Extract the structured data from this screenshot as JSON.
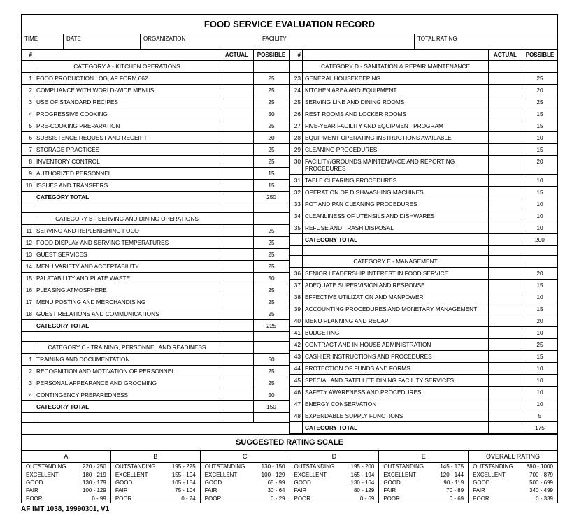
{
  "title": "FOOD SERVICE EVALUATION RECORD",
  "header": {
    "time": "TIME",
    "date": "DATE",
    "org": "ORGANIZATION",
    "facility": "FACILITY",
    "total_rating": "TOTAL RATING"
  },
  "cols": {
    "num": "#",
    "actual": "ACTUAL",
    "possible": "POSSIBLE"
  },
  "catA": {
    "title": "CATEGORY A - KITCHEN OPERATIONS",
    "rows": [
      {
        "n": "1",
        "d": "FOOD PRODUCTION LOG,  AF FORM 662",
        "p": "25"
      },
      {
        "n": "2",
        "d": "COMPLIANCE WITH WORLD-WIDE MENUS",
        "p": "25"
      },
      {
        "n": "3",
        "d": "USE OF STANDARD RECIPES",
        "p": "25"
      },
      {
        "n": "4",
        "d": "PROGRESSIVE COOKING",
        "p": "50"
      },
      {
        "n": "5",
        "d": "PRE-COOKING PREPARATION",
        "p": "25"
      },
      {
        "n": "6",
        "d": "SUBSISTENCE REQUEST AND RECEIPT",
        "p": "20"
      },
      {
        "n": "7",
        "d": "STORAGE PRACTICES",
        "p": "25"
      },
      {
        "n": "8",
        "d": "INVENTORY CONTROL",
        "p": "25"
      },
      {
        "n": "9",
        "d": "AUTHORIZED PERSONNEL",
        "p": "15"
      },
      {
        "n": "10",
        "d": "ISSUES AND TRANSFERS",
        "p": "15"
      }
    ],
    "total_label": "CATEGORY TOTAL",
    "total": "250"
  },
  "catB": {
    "title": "CATEGORY B - SERVING AND DINING OPERATIONS",
    "rows": [
      {
        "n": "11",
        "d": "SERVING AND REPLENISHING FOOD",
        "p": "25"
      },
      {
        "n": "12",
        "d": "FOOD DISPLAY AND SERVING TEMPERATURES",
        "p": "25"
      },
      {
        "n": "13",
        "d": "GUEST SERVICES",
        "p": "25"
      },
      {
        "n": "14",
        "d": "MENU VARIETY AND ACCEPTABILITY",
        "p": "25"
      },
      {
        "n": "15",
        "d": "PALATABILITY AND PLATE WASTE",
        "p": "50"
      },
      {
        "n": "16",
        "d": "PLEASING ATMOSPHERE",
        "p": "25"
      },
      {
        "n": "17",
        "d": "MENU POSTING AND MERCHANDISING",
        "p": "25"
      },
      {
        "n": "18",
        "d": "GUEST RELATIONS AND COMMUNICATIONS",
        "p": "25"
      }
    ],
    "total_label": "CATEGORY TOTAL",
    "total": "225"
  },
  "catC": {
    "title": "CATEGORY C - TRAINING, PERSONNEL AND READINESS",
    "rows": [
      {
        "n": "1",
        "d": "TRAINING AND DOCUMENTATION",
        "p": "50"
      },
      {
        "n": "2",
        "d": "RECOGNITION AND MOTIVATION OF PERSONNEL",
        "p": "25"
      },
      {
        "n": "3",
        "d": "PERSONAL APPEARANCE AND GROOMING",
        "p": "25"
      },
      {
        "n": "4",
        "d": "CONTINGENCY PREPAREDNESS",
        "p": "50"
      }
    ],
    "total_label": "CATEGORY TOTAL",
    "total": "150"
  },
  "catD": {
    "title": "CATEGORY D - SANITATION & REPAIR MAINTENANCE",
    "rows": [
      {
        "n": "23",
        "d": "GENERAL HOUSEKEEPING",
        "p": "25"
      },
      {
        "n": "24",
        "d": "KITCHEN AREA AND EQUIPMENT",
        "p": "20"
      },
      {
        "n": "25",
        "d": "SERVING LINE AND DINING ROOMS",
        "p": "25"
      },
      {
        "n": "26",
        "d": "REST ROOMS AND LOCKER ROOMS",
        "p": "15"
      },
      {
        "n": "27",
        "d": "FIVE-YEAR FACILITY AND EQUIPMENT PROGRAM",
        "p": "15"
      },
      {
        "n": "28",
        "d": "EQUIPMENT OPERATING INSTRUCTIONS AVAILABLE",
        "p": "10"
      },
      {
        "n": "29",
        "d": "CLEANING PROCEDURES",
        "p": "15"
      },
      {
        "n": "30",
        "d": "FACILITY/GROUNDS MAINTENANCE AND REPORTING PROCEDURES",
        "p": "20"
      },
      {
        "n": "31",
        "d": "TABLE CLEARING PROCEDURES",
        "p": "10"
      },
      {
        "n": "32",
        "d": "OPERATION OF DISHWASHING MACHINES",
        "p": "15"
      },
      {
        "n": "33",
        "d": "POT AND PAN CLEANING PROCEDURES",
        "p": "10"
      },
      {
        "n": "34",
        "d": "CLEANLINESS OF UTENSILS AND DISHWARES",
        "p": "10"
      },
      {
        "n": "35",
        "d": "REFUSE AND TRASH DISPOSAL",
        "p": "10"
      }
    ],
    "total_label": "CATEGORY TOTAL",
    "total": "200"
  },
  "catE": {
    "title": "CATEGORY E - MANAGEMENT",
    "rows": [
      {
        "n": "36",
        "d": "SENIOR LEADERSHIP INTEREST IN FOOD SERVICE",
        "p": "20"
      },
      {
        "n": "37",
        "d": "ADEQUATE SUPERVISION AND RESPONSE",
        "p": "15"
      },
      {
        "n": "38",
        "d": "EFFECTIVE UTILIZATION AND MANPOWER",
        "p": "10"
      },
      {
        "n": "39",
        "d": "ACCOUNTING PROCEDURES AND MONETARY MANAGEMENT",
        "p": "15"
      },
      {
        "n": "40",
        "d": "MENU PLANNING AND RECAP",
        "p": "20"
      },
      {
        "n": "41",
        "d": "BUDGETING",
        "p": "10"
      },
      {
        "n": "42",
        "d": "CONTRACT AND IN-HOUSE ADMINISTRATION",
        "p": "25"
      },
      {
        "n": "43",
        "d": "CASHIER INSTRUCTIONS AND PROCEDURES",
        "p": "15"
      },
      {
        "n": "44",
        "d": "PROTECTION OF FUNDS AND FORMS",
        "p": "10"
      },
      {
        "n": "45",
        "d": "SPECIAL AND SATELLITE DINING FACILITY SERVICES",
        "p": "10"
      },
      {
        "n": "46",
        "d": "SAFETY AWARENESS AND PROCEDURES",
        "p": "10"
      },
      {
        "n": "47",
        "d": "ENERGY CONSERVATION",
        "p": "10"
      },
      {
        "n": "48",
        "d": "EXPENDABLE SUPPLY FUNCTIONS",
        "p": "5"
      }
    ],
    "total_label": "CATEGORY TOTAL",
    "total": "175"
  },
  "scale": {
    "title": "SUGGESTED RATING SCALE",
    "labels": [
      "OUTSTANDING",
      "EXCELLENT",
      "GOOD",
      "FAIR",
      "POOR"
    ],
    "cols": [
      {
        "h": "A",
        "r": [
          "220 - 250",
          "180 - 219",
          "130 - 179",
          "100 - 129",
          "0 - 99"
        ]
      },
      {
        "h": "B",
        "r": [
          "195 - 225",
          "155 - 194",
          "105 - 154",
          "75 - 104",
          "0 - 74"
        ]
      },
      {
        "h": "C",
        "r": [
          "130 - 150",
          "100 - 129",
          "65 - 99",
          "30 - 64",
          "0 - 29"
        ]
      },
      {
        "h": "D",
        "r": [
          "195 - 200",
          "165 - 194",
          "130 - 164",
          "80 - 129",
          "0 - 69"
        ]
      },
      {
        "h": "E",
        "r": [
          "145 - 175",
          "120 - 144",
          "90 - 119",
          "70 - 89",
          "0 - 69"
        ]
      },
      {
        "h": "OVERALL RATING",
        "r": [
          "880 - 1000",
          "700 -  879",
          "500 - 699",
          "340 - 499",
          "0 - 339"
        ]
      }
    ]
  },
  "footer": "AF IMT 1038, 19990301, V1"
}
